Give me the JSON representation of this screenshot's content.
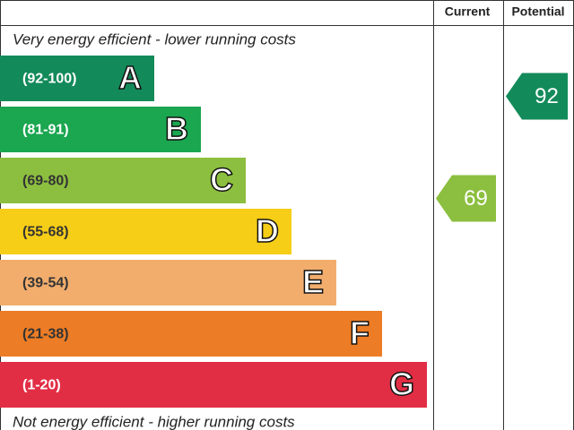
{
  "header": {
    "current": "Current",
    "potential": "Potential"
  },
  "top_note": "Very energy efficient - lower running costs",
  "bottom_note": "Not energy efficient - higher running costs",
  "bands": [
    {
      "range": "(92-100)",
      "letter": "A",
      "color": "#138a5a"
    },
    {
      "range": "(81-91)",
      "letter": "B",
      "color": "#1ba650"
    },
    {
      "range": "(69-80)",
      "letter": "C",
      "color": "#8cbf3f"
    },
    {
      "range": "(55-68)",
      "letter": "D",
      "color": "#f6cd17"
    },
    {
      "range": "(39-54)",
      "letter": "E",
      "color": "#f2ad6d"
    },
    {
      "range": "(21-38)",
      "letter": "F",
      "color": "#ec7c25"
    },
    {
      "range": "(1-20)",
      "letter": "G",
      "color": "#e22e45"
    }
  ],
  "current": 69,
  "potential": 92
}
